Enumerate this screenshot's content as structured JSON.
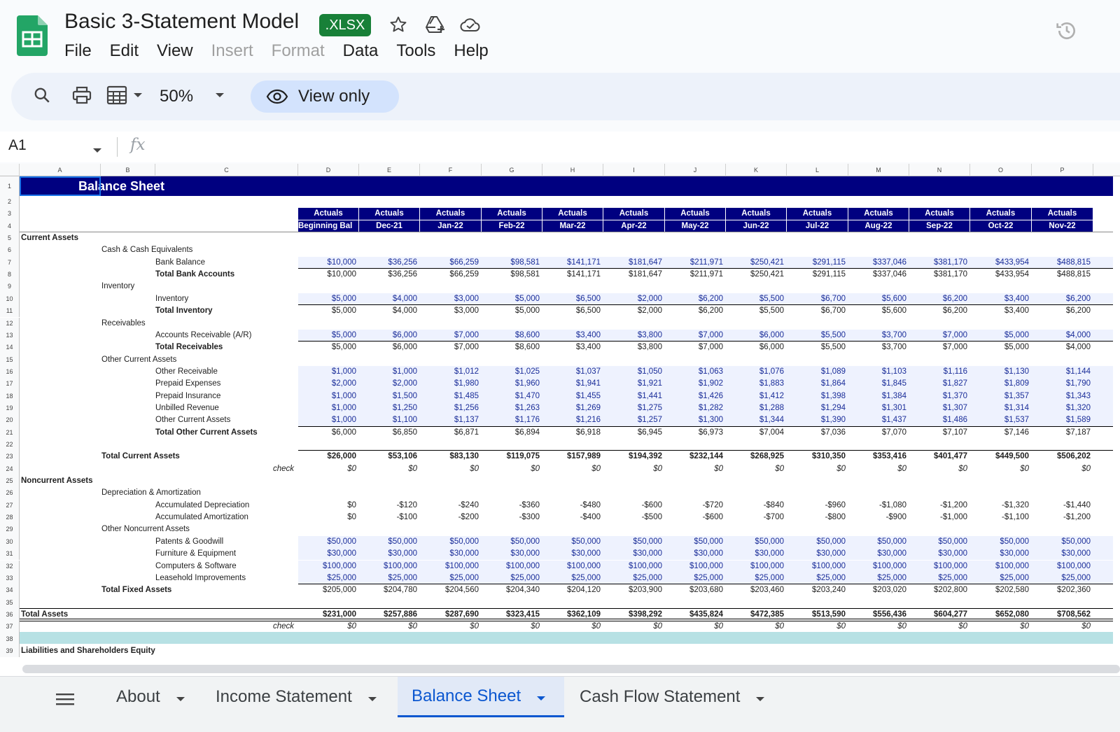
{
  "doc": {
    "title": "Basic 3-Statement Model",
    "badge": ".XLSX"
  },
  "menu": [
    "File",
    "Edit",
    "View",
    "Insert",
    "Format",
    "Data",
    "Tools",
    "Help"
  ],
  "toolbar": {
    "zoom": "50%",
    "view_only": "View only"
  },
  "formula": {
    "cell_ref": "A1",
    "fx": "fx"
  },
  "columns": [
    "A",
    "B",
    "C",
    "D",
    "E",
    "F",
    "G",
    "H",
    "I",
    "J",
    "K",
    "L",
    "M",
    "N",
    "O",
    "P"
  ],
  "sheet_title": "Balance Sheet",
  "header_row1": [
    "Actuals",
    "Actuals",
    "Actuals",
    "Actuals",
    "Actuals",
    "Actuals",
    "Actuals",
    "Actuals",
    "Actuals",
    "Actuals",
    "Actuals",
    "Actuals",
    "Actuals",
    "Actuals"
  ],
  "header_row2": [
    "Beginning Bal",
    "Dec-21",
    "Jan-22",
    "Feb-22",
    "Mar-22",
    "Apr-22",
    "May-22",
    "Jun-22",
    "Jul-22",
    "Aug-22",
    "Sep-22",
    "Oct-22",
    "Nov-22"
  ],
  "rows": [
    {
      "r": 5,
      "label": "Current Assets",
      "indent": 0,
      "bold": true
    },
    {
      "r": 6,
      "label": "Cash & Cash Equivalents",
      "indent": 1
    },
    {
      "r": 7,
      "label": "Bank Balance",
      "indent": 2,
      "blue": true,
      "ul": true,
      "values": [
        "$10,000",
        "$36,256",
        "$66,259",
        "$98,581",
        "$141,171",
        "$181,647",
        "$211,971",
        "$250,421",
        "$291,115",
        "$337,046",
        "$381,170",
        "$433,954",
        "$488,815"
      ]
    },
    {
      "r": 8,
      "label": "Total Bank Accounts",
      "indent": 2,
      "bold_label": true,
      "values": [
        "$10,000",
        "$36,256",
        "$66,259",
        "$98,581",
        "$141,171",
        "$181,647",
        "$211,971",
        "$250,421",
        "$291,115",
        "$337,046",
        "$381,170",
        "$433,954",
        "$488,815"
      ]
    },
    {
      "r": 9,
      "label": "Inventory",
      "indent": 1
    },
    {
      "r": 10,
      "label": "Inventory",
      "indent": 2,
      "blue": true,
      "ul": true,
      "values": [
        "$5,000",
        "$4,000",
        "$3,000",
        "$5,000",
        "$6,500",
        "$2,000",
        "$6,200",
        "$5,500",
        "$6,700",
        "$5,600",
        "$6,200",
        "$3,400",
        "$6,200"
      ]
    },
    {
      "r": 11,
      "label": "Total Inventory",
      "indent": 2,
      "bold_label": true,
      "values": [
        "$5,000",
        "$4,000",
        "$3,000",
        "$5,000",
        "$6,500",
        "$2,000",
        "$6,200",
        "$5,500",
        "$6,700",
        "$5,600",
        "$6,200",
        "$3,400",
        "$6,200"
      ]
    },
    {
      "r": 12,
      "label": "Receivables",
      "indent": 1
    },
    {
      "r": 13,
      "label": "Accounts Receivable (A/R)",
      "indent": 2,
      "blue": true,
      "ul": true,
      "values": [
        "$5,000",
        "$6,000",
        "$7,000",
        "$8,600",
        "$3,400",
        "$3,800",
        "$7,000",
        "$6,000",
        "$5,500",
        "$3,700",
        "$7,000",
        "$5,000",
        "$4,000"
      ]
    },
    {
      "r": 14,
      "label": "Total Receivables",
      "indent": 2,
      "bold_label": true,
      "values": [
        "$5,000",
        "$6,000",
        "$7,000",
        "$8,600",
        "$3,400",
        "$3,800",
        "$7,000",
        "$6,000",
        "$5,500",
        "$3,700",
        "$7,000",
        "$5,000",
        "$4,000"
      ]
    },
    {
      "r": 15,
      "label": "Other Current Assets",
      "indent": 1
    },
    {
      "r": 16,
      "label": "Other Receivable",
      "indent": 2,
      "blue": true,
      "values": [
        "$1,000",
        "$1,000",
        "$1,012",
        "$1,025",
        "$1,037",
        "$1,050",
        "$1,063",
        "$1,076",
        "$1,089",
        "$1,103",
        "$1,116",
        "$1,130",
        "$1,144"
      ]
    },
    {
      "r": 17,
      "label": "Prepaid Expenses",
      "indent": 2,
      "blue": true,
      "values": [
        "$2,000",
        "$2,000",
        "$1,980",
        "$1,960",
        "$1,941",
        "$1,921",
        "$1,902",
        "$1,883",
        "$1,864",
        "$1,845",
        "$1,827",
        "$1,809",
        "$1,790"
      ]
    },
    {
      "r": 18,
      "label": "Prepaid Insurance",
      "indent": 2,
      "blue": true,
      "values": [
        "$1,000",
        "$1,500",
        "$1,485",
        "$1,470",
        "$1,455",
        "$1,441",
        "$1,426",
        "$1,412",
        "$1,398",
        "$1,384",
        "$1,370",
        "$1,357",
        "$1,343"
      ]
    },
    {
      "r": 19,
      "label": "Unbilled Revenue",
      "indent": 2,
      "blue": true,
      "values": [
        "$1,000",
        "$1,250",
        "$1,256",
        "$1,263",
        "$1,269",
        "$1,275",
        "$1,282",
        "$1,288",
        "$1,294",
        "$1,301",
        "$1,307",
        "$1,314",
        "$1,320"
      ]
    },
    {
      "r": 20,
      "label": "Other Current Assets",
      "indent": 2,
      "blue": true,
      "ul": true,
      "values": [
        "$1,000",
        "$1,100",
        "$1,137",
        "$1,176",
        "$1,216",
        "$1,257",
        "$1,300",
        "$1,344",
        "$1,390",
        "$1,437",
        "$1,486",
        "$1,537",
        "$1,589"
      ]
    },
    {
      "r": 21,
      "label": "Total Other Current Assets",
      "indent": 2,
      "bold_label": true,
      "values": [
        "$6,000",
        "$6,850",
        "$6,871",
        "$6,894",
        "$6,918",
        "$6,945",
        "$6,973",
        "$7,004",
        "$7,036",
        "$7,070",
        "$7,107",
        "$7,146",
        "$7,187"
      ]
    },
    {
      "r": 22,
      "label": "",
      "indent": 0,
      "ul": true
    },
    {
      "r": 23,
      "label": "Total Current Assets",
      "indent": 1,
      "bold": true,
      "values": [
        "$26,000",
        "$53,106",
        "$83,130",
        "$119,075",
        "$157,989",
        "$194,392",
        "$232,144",
        "$268,925",
        "$310,350",
        "$353,416",
        "$401,477",
        "$449,500",
        "$506,202"
      ]
    },
    {
      "r": 24,
      "label": "check",
      "indent": 3,
      "ital": true,
      "values": [
        "$0",
        "$0",
        "$0",
        "$0",
        "$0",
        "$0",
        "$0",
        "$0",
        "$0",
        "$0",
        "$0",
        "$0",
        "$0"
      ]
    },
    {
      "r": 25,
      "label": "Noncurrent Assets",
      "indent": 0,
      "bold": true
    },
    {
      "r": 26,
      "label": "Depreciation & Amortization",
      "indent": 1
    },
    {
      "r": 27,
      "label": "Accumulated Depreciation",
      "indent": 2,
      "values": [
        "$0",
        "-$120",
        "-$240",
        "-$360",
        "-$480",
        "-$600",
        "-$720",
        "-$840",
        "-$960",
        "-$1,080",
        "-$1,200",
        "-$1,320",
        "-$1,440"
      ]
    },
    {
      "r": 28,
      "label": "Accumulated Amortization",
      "indent": 2,
      "values": [
        "$0",
        "-$100",
        "-$200",
        "-$300",
        "-$400",
        "-$500",
        "-$600",
        "-$700",
        "-$800",
        "-$900",
        "-$1,000",
        "-$1,100",
        "-$1,200"
      ]
    },
    {
      "r": 29,
      "label": "Other Noncurrent Assets",
      "indent": 1
    },
    {
      "r": 30,
      "label": "Patents & Goodwill",
      "indent": 2,
      "blue": true,
      "values": [
        "$50,000",
        "$50,000",
        "$50,000",
        "$50,000",
        "$50,000",
        "$50,000",
        "$50,000",
        "$50,000",
        "$50,000",
        "$50,000",
        "$50,000",
        "$50,000",
        "$50,000"
      ]
    },
    {
      "r": 31,
      "label": "Furniture & Equipment",
      "indent": 2,
      "blue": true,
      "values": [
        "$30,000",
        "$30,000",
        "$30,000",
        "$30,000",
        "$30,000",
        "$30,000",
        "$30,000",
        "$30,000",
        "$30,000",
        "$30,000",
        "$30,000",
        "$30,000",
        "$30,000"
      ]
    },
    {
      "r": 32,
      "label": "Computers & Software",
      "indent": 2,
      "blue": true,
      "values": [
        "$100,000",
        "$100,000",
        "$100,000",
        "$100,000",
        "$100,000",
        "$100,000",
        "$100,000",
        "$100,000",
        "$100,000",
        "$100,000",
        "$100,000",
        "$100,000",
        "$100,000"
      ]
    },
    {
      "r": 33,
      "label": "Leasehold Improvements",
      "indent": 2,
      "blue": true,
      "ul": true,
      "values": [
        "$25,000",
        "$25,000",
        "$25,000",
        "$25,000",
        "$25,000",
        "$25,000",
        "$25,000",
        "$25,000",
        "$25,000",
        "$25,000",
        "$25,000",
        "$25,000",
        "$25,000"
      ]
    },
    {
      "r": 34,
      "label": "Total Fixed Assets",
      "indent": 1,
      "bold_label": true,
      "values": [
        "$205,000",
        "$204,780",
        "$204,560",
        "$204,340",
        "$204,120",
        "$203,900",
        "$203,680",
        "$203,460",
        "$203,240",
        "$203,020",
        "$202,800",
        "$202,580",
        "$202,360"
      ]
    },
    {
      "r": 35,
      "label": "",
      "indent": 0,
      "ul": true
    },
    {
      "r": 36,
      "label": "Total Assets",
      "indent": 0,
      "bold": true,
      "dbl": true,
      "values": [
        "$231,000",
        "$257,886",
        "$287,690",
        "$323,415",
        "$362,109",
        "$398,292",
        "$435,824",
        "$472,385",
        "$513,590",
        "$556,436",
        "$604,277",
        "$652,080",
        "$708,562"
      ]
    },
    {
      "r": 37,
      "label": "check",
      "indent": 3,
      "ital": true,
      "values": [
        "$0",
        "$0",
        "$0",
        "$0",
        "$0",
        "$0",
        "$0",
        "$0",
        "$0",
        "$0",
        "$0",
        "$0",
        "$0"
      ]
    },
    {
      "r": 38,
      "label": "",
      "indent": 0,
      "teal": true
    },
    {
      "r": 39,
      "label": "Liabilities and Shareholders Equity",
      "indent": 0,
      "bold": true
    }
  ],
  "tabs": [
    {
      "label": "About"
    },
    {
      "label": "Income Statement"
    },
    {
      "label": "Balance Sheet",
      "active": true
    },
    {
      "label": "Cash Flow Statement"
    }
  ]
}
